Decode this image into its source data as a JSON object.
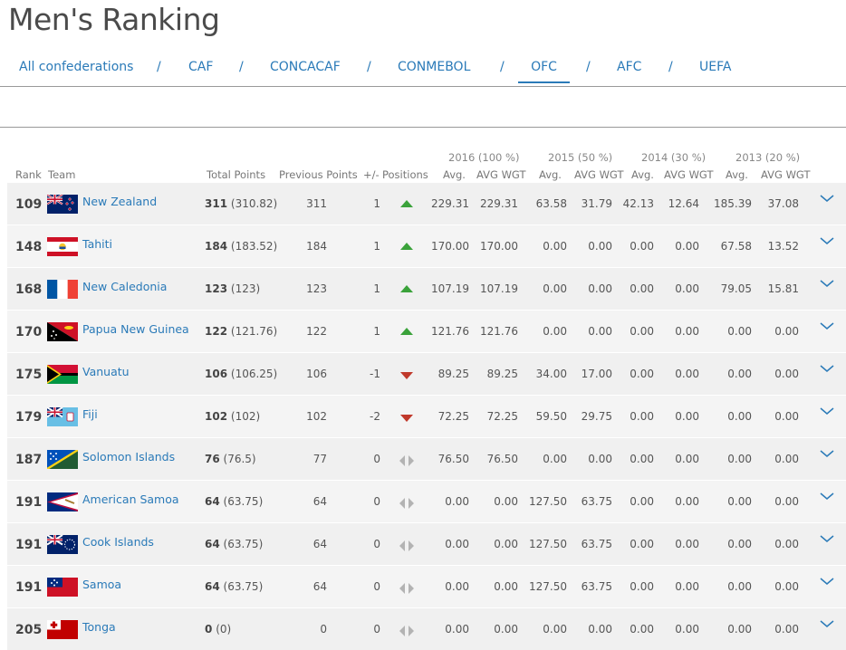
{
  "page": {
    "title": "Men's Ranking"
  },
  "nav": {
    "items": [
      {
        "label": "All confederations"
      },
      {
        "label": "CAF"
      },
      {
        "label": "CONCACAF"
      },
      {
        "label": "CONMEBOL"
      },
      {
        "label": "OFC",
        "active": true
      },
      {
        "label": "AFC"
      },
      {
        "label": "UEFA"
      }
    ],
    "separator": "/"
  },
  "table": {
    "group_headers": [
      "2016 (100 %)",
      "2015 (50 %)",
      "2014 (30 %)",
      "2013 (20 %)"
    ],
    "headers": {
      "rank": "Rank",
      "team": "Team",
      "total": "Total Points",
      "previous": "Previous Points",
      "change": "+/-",
      "positions": "Positions",
      "avg16": "Avg.",
      "wgt16": "AVG WGT",
      "avg15": "Avg.",
      "wgt15": "AVG WGT",
      "avg14": "Avg.",
      "wgt14": "AVG WGT",
      "avg13": "Avg.",
      "wgt13": "AVG WGT"
    },
    "rows": [
      {
        "rank": "109",
        "team": "New Zealand",
        "flag": "nz",
        "total": "311",
        "total_exact": "(310.82)",
        "previous": "311",
        "change": "1",
        "trend": "up",
        "avg16": "229.31",
        "wgt16": "229.31",
        "avg15": "63.58",
        "wgt15": "31.79",
        "avg14": "42.13",
        "wgt14": "12.64",
        "avg13": "185.39",
        "wgt13": "37.08"
      },
      {
        "rank": "148",
        "team": "Tahiti",
        "flag": "tahiti",
        "total": "184",
        "total_exact": "(183.52)",
        "previous": "184",
        "change": "1",
        "trend": "up",
        "avg16": "170.00",
        "wgt16": "170.00",
        "avg15": "0.00",
        "wgt15": "0.00",
        "avg14": "0.00",
        "wgt14": "0.00",
        "avg13": "67.58",
        "wgt13": "13.52"
      },
      {
        "rank": "168",
        "team": "New Caledonia",
        "flag": "france",
        "total": "123",
        "total_exact": "(123)",
        "previous": "123",
        "change": "1",
        "trend": "up",
        "avg16": "107.19",
        "wgt16": "107.19",
        "avg15": "0.00",
        "wgt15": "0.00",
        "avg14": "0.00",
        "wgt14": "0.00",
        "avg13": "79.05",
        "wgt13": "15.81"
      },
      {
        "rank": "170",
        "team": "Papua New Guinea",
        "flag": "png",
        "total": "122",
        "total_exact": "(121.76)",
        "previous": "122",
        "change": "1",
        "trend": "up",
        "avg16": "121.76",
        "wgt16": "121.76",
        "avg15": "0.00",
        "wgt15": "0.00",
        "avg14": "0.00",
        "wgt14": "0.00",
        "avg13": "0.00",
        "wgt13": "0.00"
      },
      {
        "rank": "175",
        "team": "Vanuatu",
        "flag": "vanuatu",
        "total": "106",
        "total_exact": "(106.25)",
        "previous": "106",
        "change": "-1",
        "trend": "down",
        "avg16": "89.25",
        "wgt16": "89.25",
        "avg15": "34.00",
        "wgt15": "17.00",
        "avg14": "0.00",
        "wgt14": "0.00",
        "avg13": "0.00",
        "wgt13": "0.00"
      },
      {
        "rank": "179",
        "team": "Fiji",
        "flag": "fiji",
        "total": "102",
        "total_exact": "(102)",
        "previous": "102",
        "change": "-2",
        "trend": "down",
        "avg16": "72.25",
        "wgt16": "72.25",
        "avg15": "59.50",
        "wgt15": "29.75",
        "avg14": "0.00",
        "wgt14": "0.00",
        "avg13": "0.00",
        "wgt13": "0.00"
      },
      {
        "rank": "187",
        "team": "Solomon Islands",
        "flag": "solomon",
        "total": "76",
        "total_exact": "(76.5)",
        "previous": "77",
        "change": "0",
        "trend": "same",
        "avg16": "76.50",
        "wgt16": "76.50",
        "avg15": "0.00",
        "wgt15": "0.00",
        "avg14": "0.00",
        "wgt14": "0.00",
        "avg13": "0.00",
        "wgt13": "0.00"
      },
      {
        "rank": "191",
        "team": "American Samoa",
        "flag": "amsamoa",
        "total": "64",
        "total_exact": "(63.75)",
        "previous": "64",
        "change": "0",
        "trend": "same",
        "avg16": "0.00",
        "wgt16": "0.00",
        "avg15": "127.50",
        "wgt15": "63.75",
        "avg14": "0.00",
        "wgt14": "0.00",
        "avg13": "0.00",
        "wgt13": "0.00"
      },
      {
        "rank": "191",
        "team": "Cook Islands",
        "flag": "cook",
        "total": "64",
        "total_exact": "(63.75)",
        "previous": "64",
        "change": "0",
        "trend": "same",
        "avg16": "0.00",
        "wgt16": "0.00",
        "avg15": "127.50",
        "wgt15": "63.75",
        "avg14": "0.00",
        "wgt14": "0.00",
        "avg13": "0.00",
        "wgt13": "0.00"
      },
      {
        "rank": "191",
        "team": "Samoa",
        "flag": "samoa",
        "total": "64",
        "total_exact": "(63.75)",
        "previous": "64",
        "change": "0",
        "trend": "same",
        "avg16": "0.00",
        "wgt16": "0.00",
        "avg15": "127.50",
        "wgt15": "63.75",
        "avg14": "0.00",
        "wgt14": "0.00",
        "avg13": "0.00",
        "wgt13": "0.00"
      },
      {
        "rank": "205",
        "team": "Tonga",
        "flag": "tonga",
        "total": "0",
        "total_exact": "(0)",
        "previous": "0",
        "change": "0",
        "trend": "same",
        "avg16": "0.00",
        "wgt16": "0.00",
        "avg15": "0.00",
        "wgt15": "0.00",
        "avg14": "0.00",
        "wgt14": "0.00",
        "avg13": "0.00",
        "wgt13": "0.00"
      }
    ]
  },
  "colors": {
    "link": "#2a7ab8",
    "up": "#3aa23a",
    "down": "#c0392b",
    "neutral": "#aaaaaa"
  },
  "icons": {
    "trend_up": "triangle-up-icon",
    "trend_down": "triangle-down-icon",
    "trend_same": "left-right-arrows-icon",
    "expand": "chevron-down-icon"
  }
}
